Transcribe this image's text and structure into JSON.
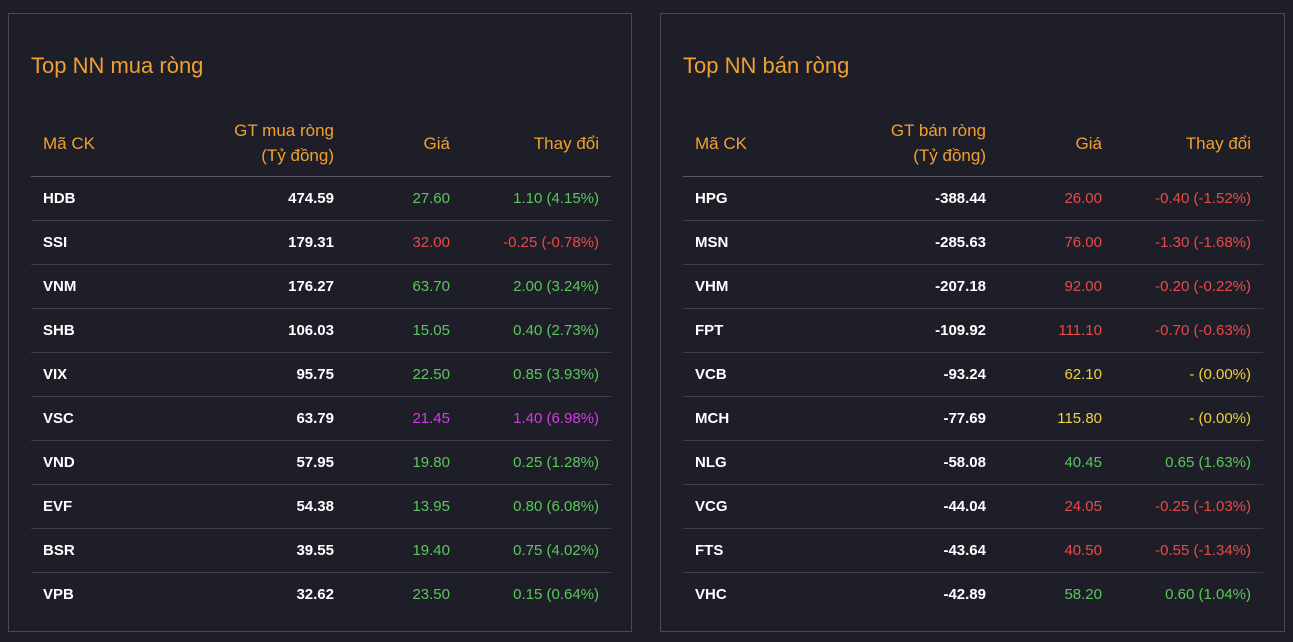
{
  "buy_panel": {
    "title": "Top NN mua ròng",
    "headers": {
      "symbol": "Mã CK",
      "value_line1": "GT mua ròng",
      "value_line2": "(Tỷ đồng)",
      "price": "Giá",
      "change": "Thay đổi"
    },
    "rows": [
      {
        "symbol": "HDB",
        "value": "474.59",
        "price": "27.60",
        "change": "1.10 (4.15%)",
        "status": "up"
      },
      {
        "symbol": "SSI",
        "value": "179.31",
        "price": "32.00",
        "change": "-0.25 (-0.78%)",
        "status": "down"
      },
      {
        "symbol": "VNM",
        "value": "176.27",
        "price": "63.70",
        "change": "2.00 (3.24%)",
        "status": "up"
      },
      {
        "symbol": "SHB",
        "value": "106.03",
        "price": "15.05",
        "change": "0.40 (2.73%)",
        "status": "up"
      },
      {
        "symbol": "VIX",
        "value": "95.75",
        "price": "22.50",
        "change": "0.85 (3.93%)",
        "status": "up"
      },
      {
        "symbol": "VSC",
        "value": "63.79",
        "price": "21.45",
        "change": "1.40 (6.98%)",
        "status": "ceil"
      },
      {
        "symbol": "VND",
        "value": "57.95",
        "price": "19.80",
        "change": "0.25 (1.28%)",
        "status": "up"
      },
      {
        "symbol": "EVF",
        "value": "54.38",
        "price": "13.95",
        "change": "0.80 (6.08%)",
        "status": "up"
      },
      {
        "symbol": "BSR",
        "value": "39.55",
        "price": "19.40",
        "change": "0.75 (4.02%)",
        "status": "up"
      },
      {
        "symbol": "VPB",
        "value": "32.62",
        "price": "23.50",
        "change": "0.15 (0.64%)",
        "status": "up"
      }
    ]
  },
  "sell_panel": {
    "title": "Top NN bán ròng",
    "headers": {
      "symbol": "Mã CK",
      "value_line1": "GT bán ròng",
      "value_line2": "(Tỷ đồng)",
      "price": "Giá",
      "change": "Thay đổi"
    },
    "rows": [
      {
        "symbol": "HPG",
        "value": "-388.44",
        "price": "26.00",
        "change": "-0.40 (-1.52%)",
        "status": "down"
      },
      {
        "symbol": "MSN",
        "value": "-285.63",
        "price": "76.00",
        "change": "-1.30 (-1.68%)",
        "status": "down"
      },
      {
        "symbol": "VHM",
        "value": "-207.18",
        "price": "92.00",
        "change": "-0.20 (-0.22%)",
        "status": "down"
      },
      {
        "symbol": "FPT",
        "value": "-109.92",
        "price": "111.10",
        "change": "-0.70 (-0.63%)",
        "status": "down"
      },
      {
        "symbol": "VCB",
        "value": "-93.24",
        "price": "62.10",
        "change": "- (0.00%)",
        "status": "ref"
      },
      {
        "symbol": "MCH",
        "value": "-77.69",
        "price": "115.80",
        "change": "- (0.00%)",
        "status": "ref"
      },
      {
        "symbol": "NLG",
        "value": "-58.08",
        "price": "40.45",
        "change": "0.65 (1.63%)",
        "status": "up"
      },
      {
        "symbol": "VCG",
        "value": "-44.04",
        "price": "24.05",
        "change": "-0.25 (-1.03%)",
        "status": "down"
      },
      {
        "symbol": "FTS",
        "value": "-43.64",
        "price": "40.50",
        "change": "-0.55 (-1.34%)",
        "status": "down"
      },
      {
        "symbol": "VHC",
        "value": "-42.89",
        "price": "58.20",
        "change": "0.60 (1.04%)",
        "status": "up"
      }
    ]
  },
  "colors": {
    "up": "#5ac85a",
    "down": "#e84a4a",
    "ref": "#f0d040",
    "ceil": "#d63ae8",
    "accent": "#f0a030"
  }
}
